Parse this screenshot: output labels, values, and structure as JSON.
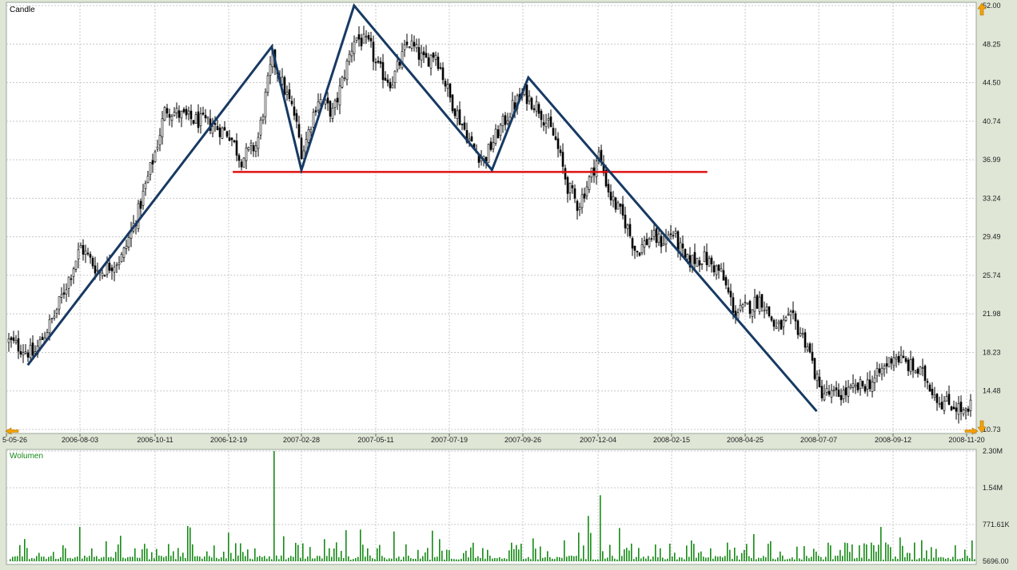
{
  "colors": {
    "background": "#ffffff",
    "frame": "#dfe6d6",
    "grid": "#c8c8c8",
    "candle_up": "#ffffff",
    "candle_down": "#000000",
    "candle_outline": "#000000",
    "trend_line": "#173a63",
    "support_line": "#e01010",
    "volume": "#168a16",
    "arrow_orange": "#f5a200"
  },
  "price_panel": {
    "title": "Candle",
    "y_ticks": [
      "52.00",
      "48.25",
      "44.50",
      "40.74",
      "36.99",
      "33.24",
      "29.49",
      "25.74",
      "21.98",
      "18.23",
      "14.48",
      "10.73"
    ],
    "x_ticks": [
      "5-05-26",
      "2006-08-03",
      "2006-10-11",
      "2006-12-19",
      "2007-02-28",
      "2007-05-11",
      "2007-07-19",
      "2007-09-26",
      "2007-12-04",
      "2008-02-15",
      "2008-04-25",
      "2008-07-07",
      "2008-09-12",
      "2008-11-20"
    ]
  },
  "volume_panel": {
    "title": "Wolumen",
    "y_ticks": [
      "2.30M",
      "1.54M",
      "771.61K",
      "5696.00"
    ]
  },
  "chart_data": [
    {
      "type": "candlestick",
      "title": "Candle",
      "ylim": [
        10.73,
        52.0
      ],
      "x_tick_labels": [
        "2006-08-03",
        "2006-10-11",
        "2006-12-19",
        "2007-02-28",
        "2007-05-11",
        "2007-07-19",
        "2007-09-26",
        "2007-12-04",
        "2008-02-15",
        "2008-04-25",
        "2008-07-07",
        "2008-09-12",
        "2008-11-20"
      ],
      "y_tick_labels": [
        "52.00",
        "48.25",
        "44.50",
        "40.74",
        "36.99",
        "33.24",
        "29.49",
        "25.74",
        "21.98",
        "18.23",
        "14.48",
        "10.73"
      ],
      "close_path": [
        {
          "x": "2006-05-26",
          "y": 19.4
        },
        {
          "x": "2006-06-20",
          "y": 18.0
        },
        {
          "x": "2006-07-10",
          "y": 22.0
        },
        {
          "x": "2006-08-03",
          "y": 28.5
        },
        {
          "x": "2006-08-20",
          "y": 26.0
        },
        {
          "x": "2006-09-10",
          "y": 27.5
        },
        {
          "x": "2006-09-25",
          "y": 32.0
        },
        {
          "x": "2006-10-11",
          "y": 38.0
        },
        {
          "x": "2006-10-20",
          "y": 42.0
        },
        {
          "x": "2006-11-10",
          "y": 41.0
        },
        {
          "x": "2006-11-30",
          "y": 40.5
        },
        {
          "x": "2006-12-19",
          "y": 39.5
        },
        {
          "x": "2006-12-30",
          "y": 37.0
        },
        {
          "x": "2007-01-15",
          "y": 38.5
        },
        {
          "x": "2007-01-30",
          "y": 47.0
        },
        {
          "x": "2007-02-10",
          "y": 44.0
        },
        {
          "x": "2007-02-20",
          "y": 41.5
        },
        {
          "x": "2007-02-28",
          "y": 37.5
        },
        {
          "x": "2007-03-15",
          "y": 43.0
        },
        {
          "x": "2007-03-30",
          "y": 41.5
        },
        {
          "x": "2007-04-20",
          "y": 49.0
        },
        {
          "x": "2007-05-05",
          "y": 48.0
        },
        {
          "x": "2007-05-11",
          "y": 46.0
        },
        {
          "x": "2007-05-25",
          "y": 44.5
        },
        {
          "x": "2007-06-10",
          "y": 48.5
        },
        {
          "x": "2007-06-25",
          "y": 46.5
        },
        {
          "x": "2007-07-05",
          "y": 47.5
        },
        {
          "x": "2007-07-19",
          "y": 43.0
        },
        {
          "x": "2007-07-30",
          "y": 40.5
        },
        {
          "x": "2007-08-10",
          "y": 38.0
        },
        {
          "x": "2007-08-20",
          "y": 37.0
        },
        {
          "x": "2007-09-01",
          "y": 39.5
        },
        {
          "x": "2007-09-15",
          "y": 42.0
        },
        {
          "x": "2007-09-26",
          "y": 43.5
        },
        {
          "x": "2007-10-10",
          "y": 42.0
        },
        {
          "x": "2007-10-25",
          "y": 39.0
        },
        {
          "x": "2007-11-05",
          "y": 34.5
        },
        {
          "x": "2007-11-15",
          "y": 32.5
        },
        {
          "x": "2007-11-25",
          "y": 35.0
        },
        {
          "x": "2007-12-04",
          "y": 37.5
        },
        {
          "x": "2007-12-15",
          "y": 33.5
        },
        {
          "x": "2007-12-30",
          "y": 31.0
        },
        {
          "x": "2008-01-10",
          "y": 28.0
        },
        {
          "x": "2008-01-25",
          "y": 29.5
        },
        {
          "x": "2008-02-05",
          "y": 29.0
        },
        {
          "x": "2008-02-15",
          "y": 30.0
        },
        {
          "x": "2008-02-28",
          "y": 27.0
        },
        {
          "x": "2008-03-15",
          "y": 27.5
        },
        {
          "x": "2008-04-01",
          "y": 26.0
        },
        {
          "x": "2008-04-15",
          "y": 22.0
        },
        {
          "x": "2008-04-25",
          "y": 22.5
        },
        {
          "x": "2008-05-10",
          "y": 23.5
        },
        {
          "x": "2008-05-25",
          "y": 20.5
        },
        {
          "x": "2008-06-10",
          "y": 21.5
        },
        {
          "x": "2008-06-25",
          "y": 19.0
        },
        {
          "x": "2008-07-07",
          "y": 14.5
        },
        {
          "x": "2008-07-20",
          "y": 14.0
        },
        {
          "x": "2008-08-05",
          "y": 14.5
        },
        {
          "x": "2008-08-25",
          "y": 15.5
        },
        {
          "x": "2008-09-12",
          "y": 18.0
        },
        {
          "x": "2008-09-25",
          "y": 17.0
        },
        {
          "x": "2008-10-10",
          "y": 16.0
        },
        {
          "x": "2008-10-25",
          "y": 13.5
        },
        {
          "x": "2008-11-10",
          "y": 13.0
        },
        {
          "x": "2008-11-20",
          "y": 12.0
        },
        {
          "x": "2008-11-25",
          "y": 13.8
        }
      ],
      "annotations": {
        "trend_line": [
          {
            "x": "2006-06-15",
            "y": 17.0
          },
          {
            "x": "2007-01-30",
            "y": 48.0
          },
          {
            "x": "2007-02-28",
            "y": 36.0
          },
          {
            "x": "2007-04-20",
            "y": 52.0
          },
          {
            "x": "2007-08-28",
            "y": 36.0
          },
          {
            "x": "2007-10-01",
            "y": 45.0
          },
          {
            "x": "2008-07-05",
            "y": 12.5
          }
        ],
        "support_line": {
          "y": 35.8,
          "x_from": "2006-12-23",
          "x_to": "2008-03-20"
        }
      }
    },
    {
      "type": "bar",
      "title": "Wolumen",
      "ylim": [
        5696,
        2300000
      ],
      "y_tick_labels": [
        "2.30M",
        "1.54M",
        "771.61K",
        "5696.00"
      ],
      "spikes": [
        {
          "x": "2007-01-31",
          "value": 2300000
        },
        {
          "x": "2007-12-06",
          "value": 1380000
        },
        {
          "x": "2007-11-25",
          "value": 950000
        },
        {
          "x": "2006-08-03",
          "value": 720000
        },
        {
          "x": "2006-12-19",
          "value": 600000
        }
      ],
      "typical_value": 250000
    }
  ]
}
